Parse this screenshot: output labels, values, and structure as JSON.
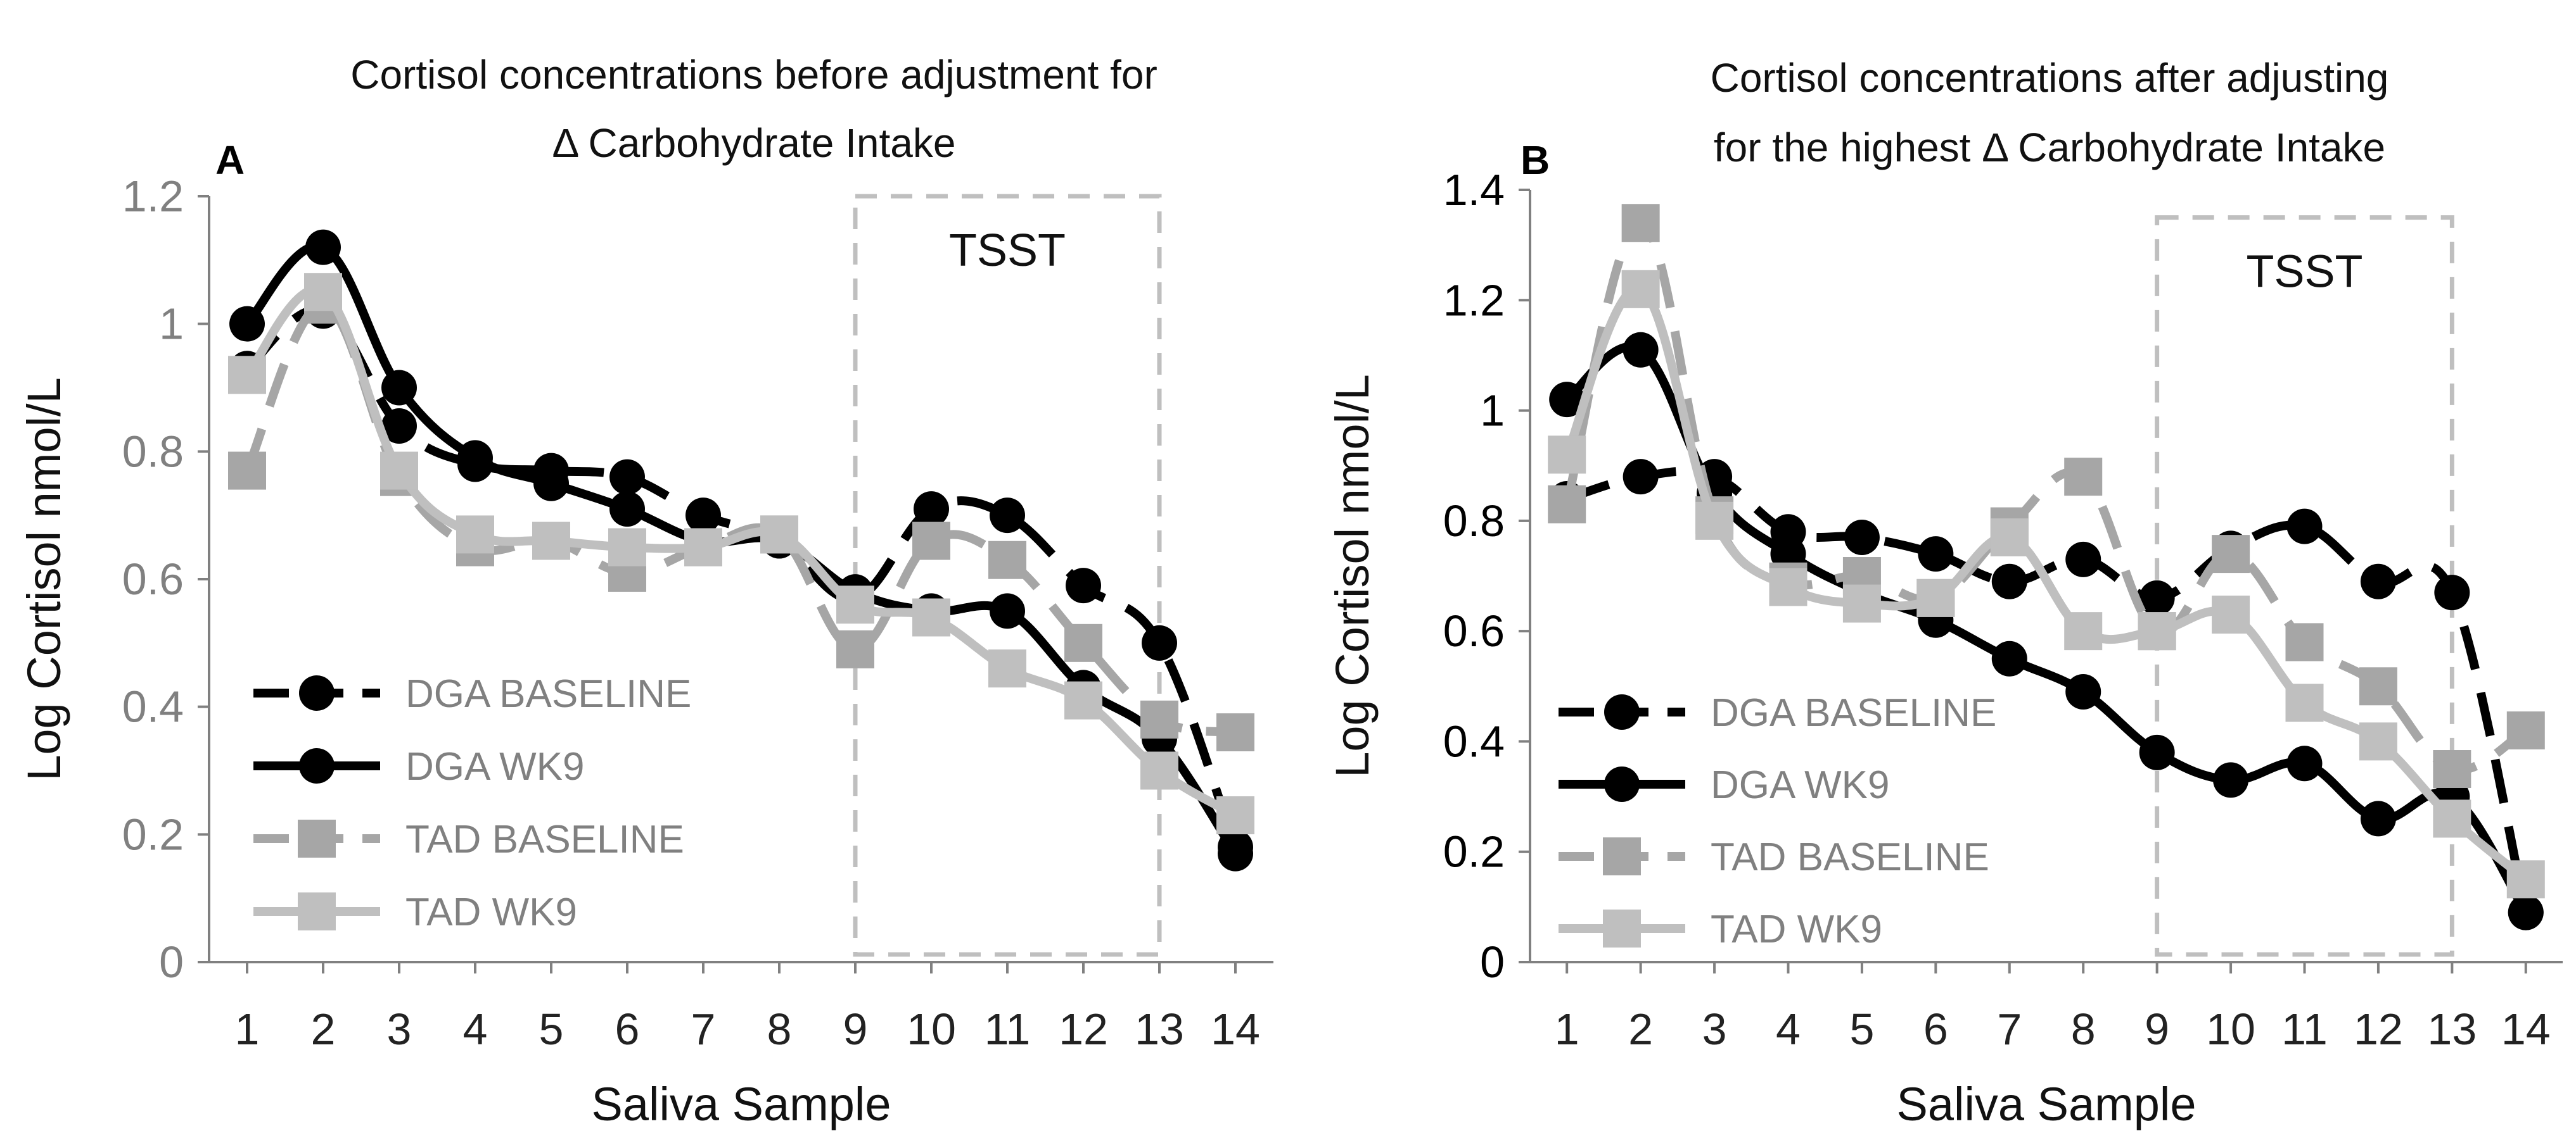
{
  "chart_data": [
    {
      "type": "line",
      "panel_label": "A",
      "title_lines": [
        "Cortisol concentrations before adjustment for",
        "Δ Carbohydrate Intake"
      ],
      "xlabel": "Saliva Sample",
      "ylabel": "Log Cortisol nmol/L",
      "categories": [
        "1",
        "2",
        "3",
        "4",
        "5",
        "6",
        "7",
        "8",
        "9",
        "10",
        "11",
        "12",
        "13",
        "14"
      ],
      "ylim": [
        0,
        1.2
      ],
      "yticks": [
        0,
        0.2,
        0.4,
        0.6,
        0.8,
        1,
        1.2
      ],
      "ytick_labels": [
        "0",
        "0.2",
        "0.4",
        "0.6",
        "0.8",
        "1",
        "1.2"
      ],
      "ytick_color": "#808080",
      "grid": false,
      "legend_position": "bottom-left",
      "annotation": {
        "text": "TSST",
        "x_start": 9,
        "x_end": 13,
        "y_top": 1.2
      },
      "series": [
        {
          "name": "DGA BASELINE",
          "color": "#000000",
          "dash": "dashed",
          "marker": "circle",
          "label_color": "#808080",
          "values": [
            0.93,
            1.02,
            0.84,
            0.78,
            0.77,
            0.76,
            0.7,
            0.66,
            0.57,
            0.71,
            0.7,
            0.59,
            0.5,
            0.18
          ]
        },
        {
          "name": "DGA WK9",
          "color": "#000000",
          "dash": "solid",
          "marker": "circle",
          "label_color": "#808080",
          "values": [
            1.0,
            1.12,
            0.9,
            0.79,
            0.75,
            0.71,
            0.66,
            0.66,
            0.58,
            0.55,
            0.55,
            0.43,
            0.35,
            0.17
          ]
        },
        {
          "name": "TAD BASELINE",
          "color": "#a6a6a6",
          "dash": "dashed",
          "marker": "square",
          "label_color": "#808080",
          "values": [
            0.77,
            1.03,
            0.76,
            0.65,
            0.66,
            0.61,
            0.65,
            0.67,
            0.49,
            0.66,
            0.63,
            0.5,
            0.38,
            0.36
          ]
        },
        {
          "name": "TAD WK9",
          "color": "#bfbfbf",
          "dash": "solid",
          "marker": "square",
          "label_color": "#808080",
          "values": [
            0.92,
            1.05,
            0.77,
            0.67,
            0.66,
            0.65,
            0.65,
            0.67,
            0.56,
            0.54,
            0.46,
            0.41,
            0.3,
            0.23
          ]
        }
      ]
    },
    {
      "type": "line",
      "panel_label": "B",
      "title_lines": [
        "Cortisol concentrations after adjusting",
        "for the highest Δ Carbohydrate Intake"
      ],
      "xlabel": "Saliva Sample",
      "ylabel": "Log Cortisol nmol/L",
      "categories": [
        "1",
        "2",
        "3",
        "4",
        "5",
        "6",
        "7",
        "8",
        "9",
        "10",
        "11",
        "12",
        "13",
        "14"
      ],
      "ylim": [
        0,
        1.4
      ],
      "yticks": [
        0,
        0.2,
        0.4,
        0.6,
        0.8,
        1,
        1.2,
        1.4
      ],
      "ytick_labels": [
        "0",
        "0.2",
        "0.4",
        "0.6",
        "0.8",
        "1",
        "1.2",
        "1.4"
      ],
      "ytick_color": "#000000",
      "grid": false,
      "legend_position": "bottom-left",
      "annotation": {
        "text": "TSST",
        "x_start": 9,
        "x_end": 13,
        "y_top": 1.35
      },
      "series": [
        {
          "name": "DGA BASELINE",
          "color": "#000000",
          "dash": "dashed",
          "marker": "circle",
          "label_color": "#808080",
          "values": [
            0.84,
            0.88,
            0.88,
            0.78,
            0.77,
            0.74,
            0.69,
            0.73,
            0.66,
            0.75,
            0.79,
            0.69,
            0.67,
            0.09
          ]
        },
        {
          "name": "DGA WK9",
          "color": "#000000",
          "dash": "solid",
          "marker": "circle",
          "label_color": "#808080",
          "values": [
            1.02,
            1.11,
            0.85,
            0.74,
            0.67,
            0.62,
            0.55,
            0.49,
            0.38,
            0.33,
            0.36,
            0.26,
            0.3,
            0.09
          ]
        },
        {
          "name": "TAD BASELINE",
          "color": "#a6a6a6",
          "dash": "dashed",
          "marker": "square",
          "label_color": "#808080",
          "values": [
            0.83,
            1.34,
            0.81,
            0.69,
            0.7,
            0.66,
            0.79,
            0.88,
            0.6,
            0.74,
            0.58,
            0.5,
            0.35,
            0.42
          ]
        },
        {
          "name": "TAD WK9",
          "color": "#bfbfbf",
          "dash": "solid",
          "marker": "square",
          "label_color": "#808080",
          "values": [
            0.92,
            1.22,
            0.8,
            0.68,
            0.65,
            0.66,
            0.77,
            0.6,
            0.6,
            0.63,
            0.47,
            0.4,
            0.26,
            0.15
          ]
        }
      ]
    }
  ]
}
